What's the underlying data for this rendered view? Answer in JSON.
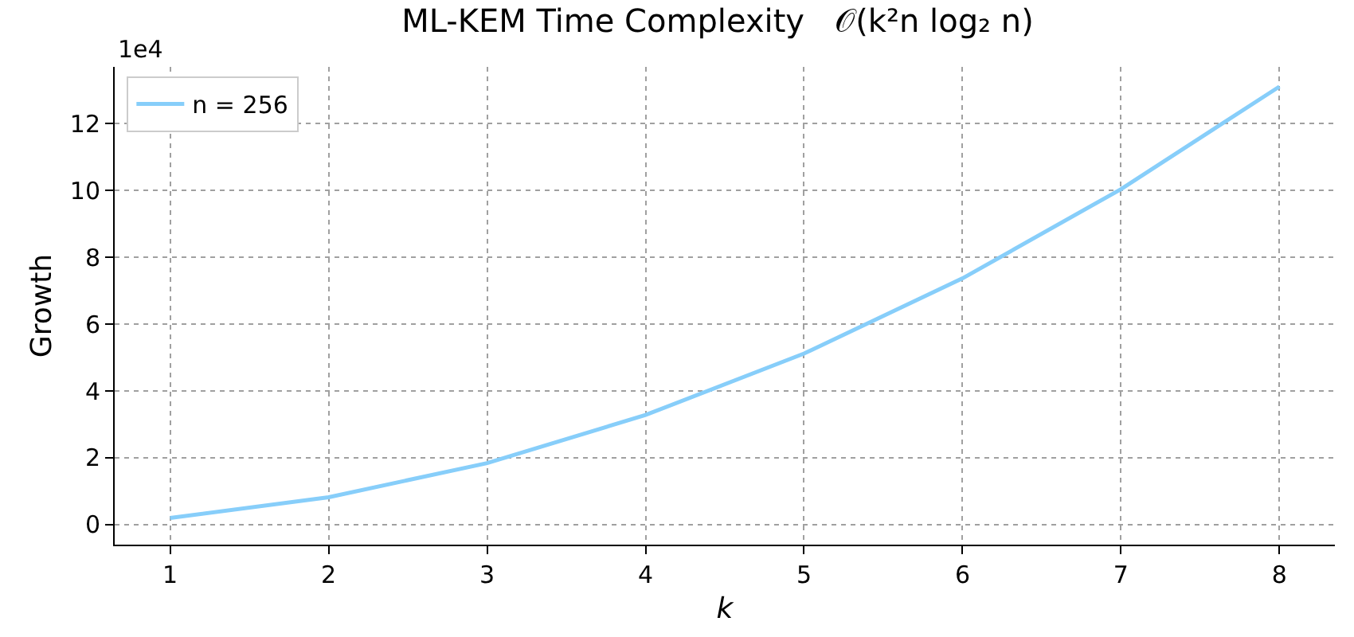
{
  "chart_data": {
    "type": "line",
    "title": "ML-KEM Time Complexity   𝒪(k²n log₂ n)",
    "xlabel": "k",
    "ylabel": "Growth",
    "annotations": [
      "1e4"
    ],
    "x": [
      1,
      2,
      3,
      4,
      5,
      6,
      7,
      8
    ],
    "series": [
      {
        "name": "n = 256",
        "color": "#87cefa",
        "values": [
          0.2,
          0.82,
          1.84,
          3.28,
          5.12,
          7.37,
          10.04,
          13.11
        ]
      }
    ],
    "xlim": [
      0.65,
      8.35
    ],
    "xticks": [
      1,
      2,
      3,
      4,
      5,
      6,
      7,
      8
    ],
    "ylim": [
      -0.6,
      13.7
    ],
    "yticks": [
      0,
      2,
      4,
      6,
      8,
      10,
      12
    ],
    "grid": true,
    "legend": "top left",
    "marker": "none",
    "line_style": "solid"
  }
}
